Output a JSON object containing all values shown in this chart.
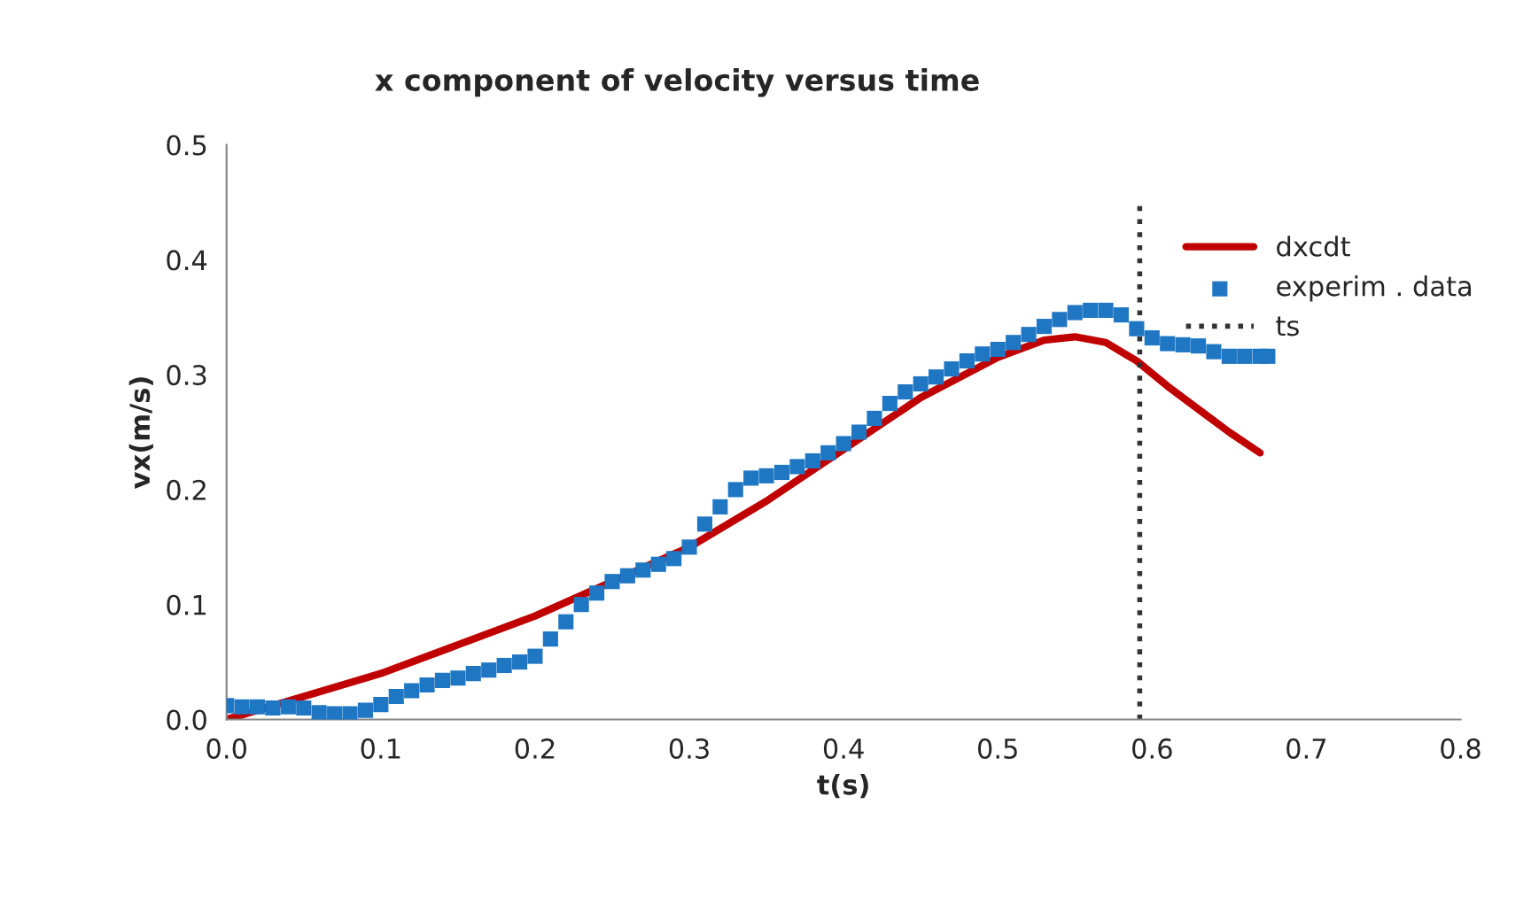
{
  "chart_data": {
    "type": "line",
    "title": "x component of velocity versus time",
    "xlabel": "t(s)",
    "ylabel": "vx(m/s)",
    "xlim": [
      0,
      0.8
    ],
    "ylim": [
      0,
      0.5
    ],
    "xticks": [
      {
        "value": 0,
        "label": "0.0"
      },
      {
        "value": 0.1,
        "label": "0.1"
      },
      {
        "value": 0.2,
        "label": "0.2"
      },
      {
        "value": 0.3,
        "label": "0.3"
      },
      {
        "value": 0.4,
        "label": "0.4"
      },
      {
        "value": 0.5,
        "label": "0.5"
      },
      {
        "value": 0.6,
        "label": "0.6"
      },
      {
        "value": 0.7,
        "label": "0.7"
      },
      {
        "value": 0.8,
        "label": "0.8"
      }
    ],
    "yticks": [
      {
        "value": 0,
        "label": "0.0"
      },
      {
        "value": 0.1,
        "label": "0.1"
      },
      {
        "value": 0.2,
        "label": "0.2"
      },
      {
        "value": 0.3,
        "label": "0.3"
      },
      {
        "value": 0.4,
        "label": "0.4"
      },
      {
        "value": 0.5,
        "label": "0.5"
      }
    ],
    "grid": false,
    "legend": "right",
    "series": [
      {
        "name": "dxcdt",
        "color": "#c00000",
        "line_style": "solid",
        "x": [
          0,
          0.05,
          0.1,
          0.15,
          0.2,
          0.25,
          0.3,
          0.35,
          0.4,
          0.45,
          0.5,
          0.53,
          0.55,
          0.57,
          0.59,
          0.61,
          0.63,
          0.65,
          0.67
        ],
        "values": [
          0,
          0.02,
          0.04,
          0.065,
          0.09,
          0.12,
          0.15,
          0.19,
          0.235,
          0.28,
          0.315,
          0.33,
          0.333,
          0.328,
          0.312,
          0.29,
          0.27,
          0.25,
          0.232
        ]
      },
      {
        "name": "experim . data",
        "type": "scatter",
        "marker": "square",
        "color": "#1f77c4",
        "x": [
          0,
          0.01,
          0.02,
          0.03,
          0.04,
          0.05,
          0.06,
          0.07,
          0.08,
          0.09,
          0.1,
          0.11,
          0.12,
          0.13,
          0.14,
          0.15,
          0.16,
          0.17,
          0.18,
          0.19,
          0.2,
          0.21,
          0.22,
          0.23,
          0.24,
          0.25,
          0.26,
          0.27,
          0.28,
          0.29,
          0.3,
          0.31,
          0.32,
          0.33,
          0.34,
          0.35,
          0.36,
          0.37,
          0.38,
          0.39,
          0.4,
          0.41,
          0.42,
          0.43,
          0.44,
          0.45,
          0.46,
          0.47,
          0.48,
          0.49,
          0.5,
          0.51,
          0.52,
          0.53,
          0.54,
          0.55,
          0.56,
          0.57,
          0.58,
          0.59,
          0.6,
          0.61,
          0.62,
          0.63,
          0.64,
          0.65,
          0.66,
          0.67,
          0.675
        ],
        "values": [
          0.012,
          0.011,
          0.011,
          0.01,
          0.011,
          0.01,
          0.006,
          0.005,
          0.005,
          0.008,
          0.013,
          0.02,
          0.025,
          0.03,
          0.034,
          0.036,
          0.04,
          0.043,
          0.047,
          0.05,
          0.055,
          0.07,
          0.085,
          0.1,
          0.11,
          0.12,
          0.125,
          0.13,
          0.135,
          0.14,
          0.15,
          0.17,
          0.185,
          0.2,
          0.21,
          0.212,
          0.215,
          0.22,
          0.225,
          0.232,
          0.24,
          0.25,
          0.262,
          0.275,
          0.285,
          0.292,
          0.298,
          0.305,
          0.312,
          0.318,
          0.322,
          0.328,
          0.335,
          0.342,
          0.348,
          0.354,
          0.356,
          0.356,
          0.352,
          0.34,
          0.332,
          0.327,
          0.326,
          0.325,
          0.32,
          0.316,
          0.316,
          0.316,
          0.316
        ]
      },
      {
        "name": "ts",
        "color": "#333333",
        "line_style": "dotted",
        "x": [
          0.592,
          0.592
        ],
        "values": [
          0,
          0.45
        ]
      }
    ]
  }
}
